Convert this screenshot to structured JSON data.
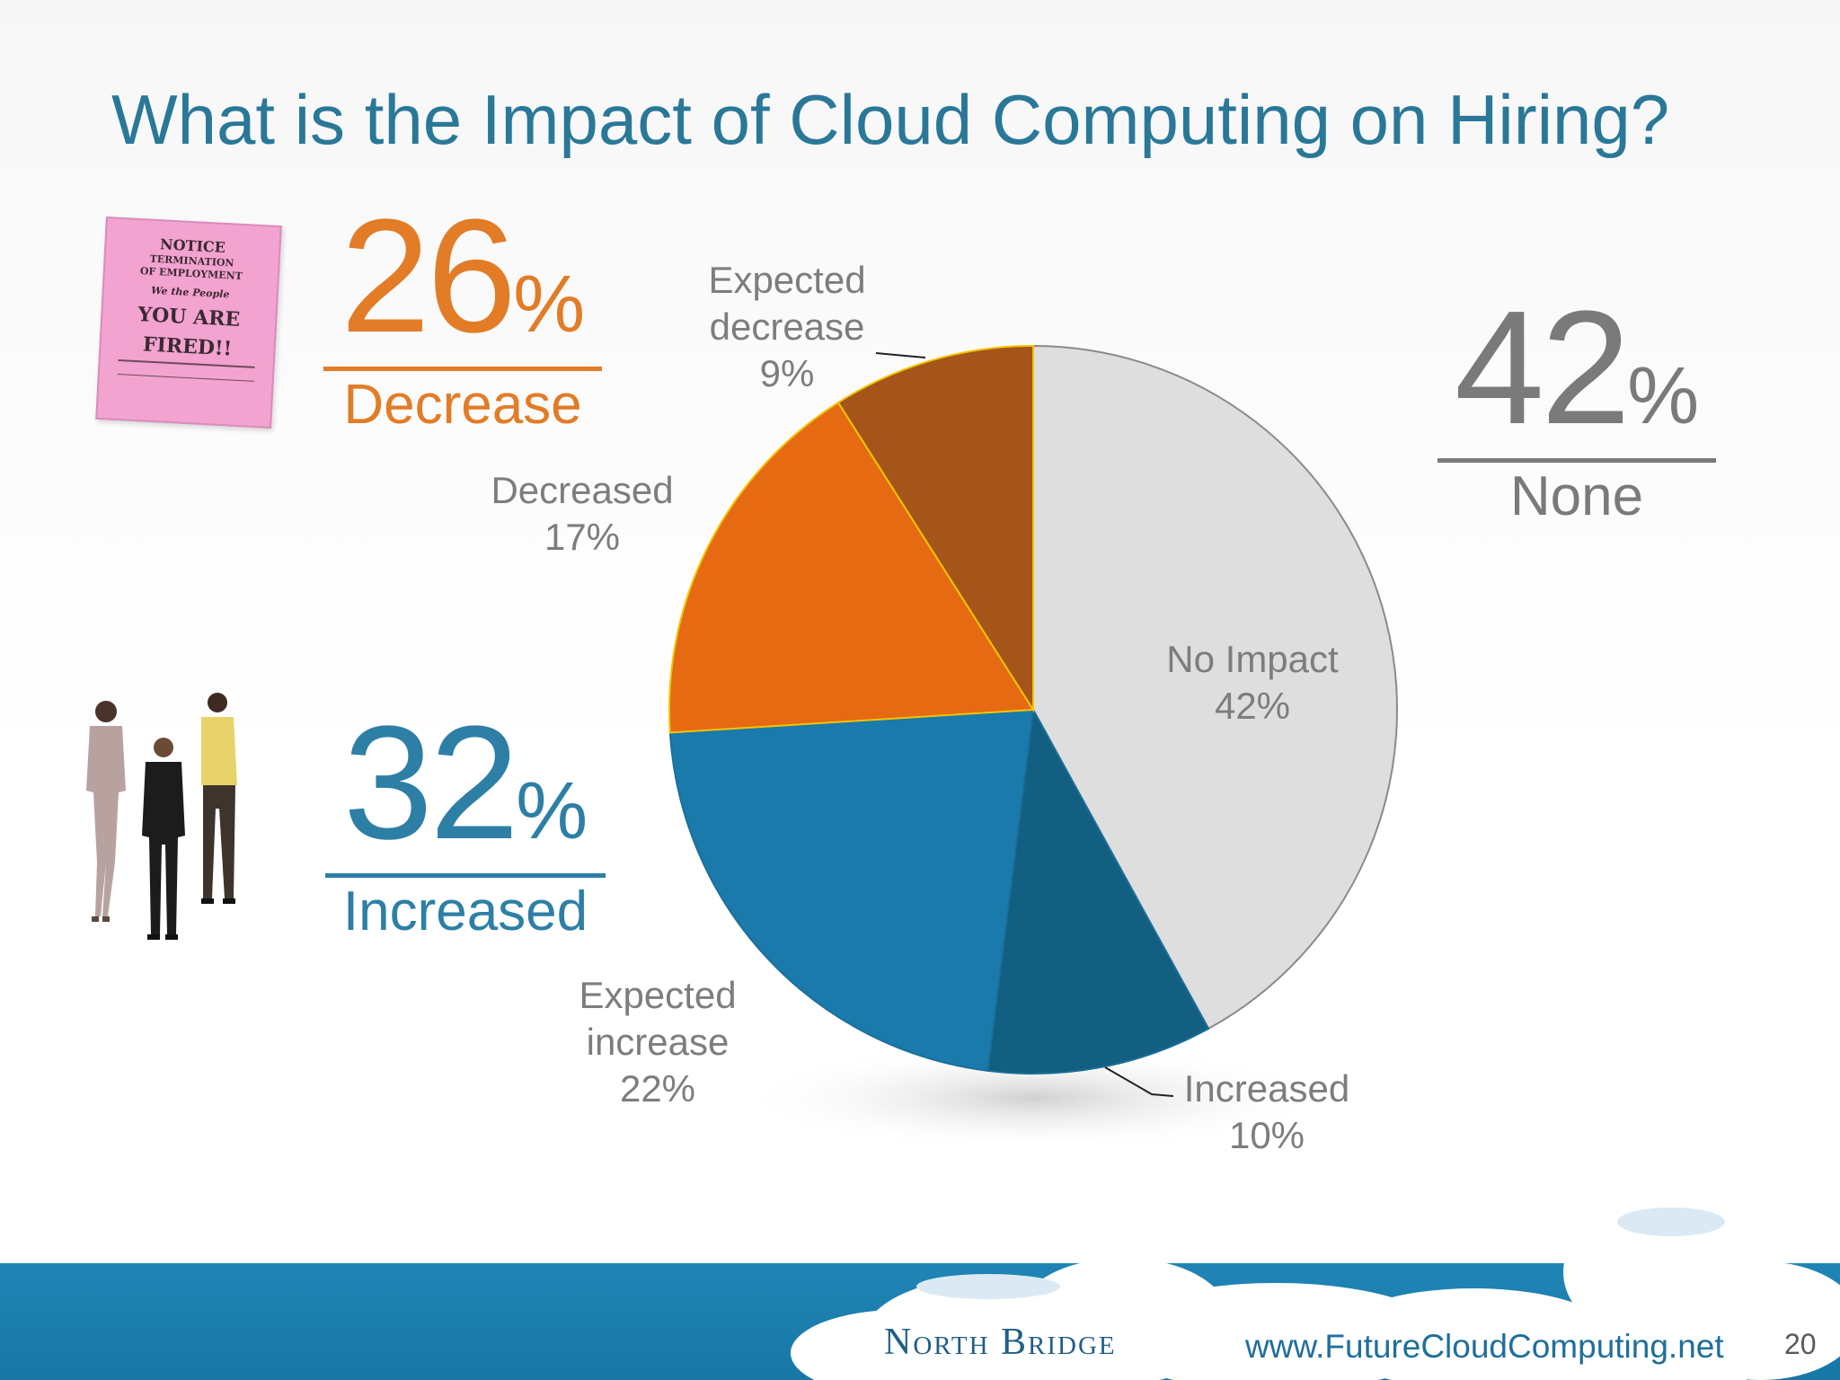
{
  "title": "What is the Impact of Cloud Computing on Hiring?",
  "stats": {
    "decrease": {
      "number": "26",
      "pct": "%",
      "label": "Decrease"
    },
    "increased": {
      "number": "32",
      "pct": "%",
      "label": "Increased"
    },
    "none": {
      "number": "42",
      "pct": "%",
      "label": "None"
    }
  },
  "notice": {
    "line1": "NOTICE",
    "line2": "TERMINATION",
    "line3": "OF EMPLOYMENT",
    "line4": "We the People",
    "line5": "YOU ARE",
    "line6": "FIRED!!"
  },
  "footer": {
    "brand": "North Bridge",
    "url": "www.FutureCloudComputing.net",
    "page": "20"
  },
  "colors": {
    "title": "#2a7898",
    "orange": "#e27c27",
    "blue": "#2d7fa6",
    "gray": "#7a7a7a"
  },
  "chart_data": {
    "type": "pie",
    "slices": [
      {
        "label_lines": [
          "No Impact"
        ],
        "value": 42,
        "value_label": "42%",
        "color": "#dedede"
      },
      {
        "label_lines": [
          "Increased"
        ],
        "value": 10,
        "value_label": "10%",
        "color": "#125f82"
      },
      {
        "label_lines": [
          "Expected",
          "increase"
        ],
        "value": 22,
        "value_label": "22%",
        "color": "#1a7aab"
      },
      {
        "label_lines": [
          "Decreased"
        ],
        "value": 17,
        "value_label": "17%",
        "color": "#e56a12"
      },
      {
        "label_lines": [
          "Expected",
          "decrease"
        ],
        "value": 9,
        "value_label": "9%",
        "color": "#a5551a"
      }
    ]
  }
}
